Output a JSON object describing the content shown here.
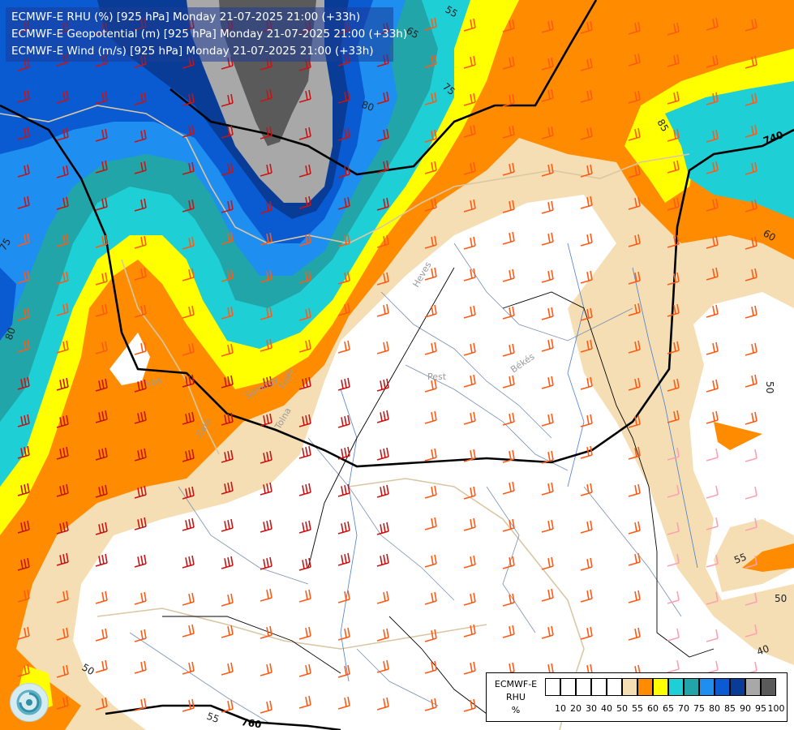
{
  "title_lines": [
    "ECMWF-E RHU (%) [925 hPa] Monday 21-07-2025 21:00 (+33h)",
    "ECMWF-E Geopotential (m) [925 hPa] Monday 21-07-2025 21:00 (+33h)",
    "ECMWF-E Wind (m/s) [925 hPa] Monday 21-07-2025 21:00 (+33h)"
  ],
  "legend": {
    "caption": [
      "ECMWF-E",
      "RHU",
      "%"
    ],
    "ticks": [
      "10",
      "20",
      "30",
      "40",
      "50",
      "55",
      "60",
      "65",
      "70",
      "75",
      "80",
      "85",
      "90",
      "95",
      "100"
    ],
    "colors": [
      "#ffffff",
      "#ffffff",
      "#ffffff",
      "#ffffff",
      "#ffffff",
      "#f5deb3",
      "#ff8c00",
      "#ffff00",
      "#1ecfd6",
      "#21a5a8",
      "#1e8ef0",
      "#0a5ad2",
      "#083c96",
      "#a8a8a8",
      "#5a5a5a"
    ]
  },
  "rhu_contour_labels": [
    "55",
    "65",
    "75",
    "80",
    "85",
    "75",
    "80",
    "60",
    "50",
    "55",
    "50",
    "40",
    "50",
    "55"
  ],
  "geopotential_labels": [
    "740",
    "760"
  ],
  "region_labels": [
    "Pest",
    "Békés",
    "Vas",
    "Zala",
    "Somogy",
    "Fejér",
    "Tolna",
    "Heves"
  ],
  "colors": {
    "rhu_55": "#f5deb3",
    "rhu_60": "#ff8c00",
    "rhu_65": "#ffff00",
    "rhu_70": "#1ecfd6",
    "rhu_75": "#21a5a8",
    "rhu_80": "#1e8ef0",
    "rhu_85": "#0a5ad2",
    "rhu_90": "#083c96",
    "rhu_95": "#a8a8a8",
    "rhu_100": "#5a5a5a",
    "wind_barb_strong": "#c81414",
    "wind_barb_medium": "#ff5a14",
    "wind_barb_light": "#ff9fb4"
  },
  "icons": [
    "ecmwf-logo-icon"
  ]
}
